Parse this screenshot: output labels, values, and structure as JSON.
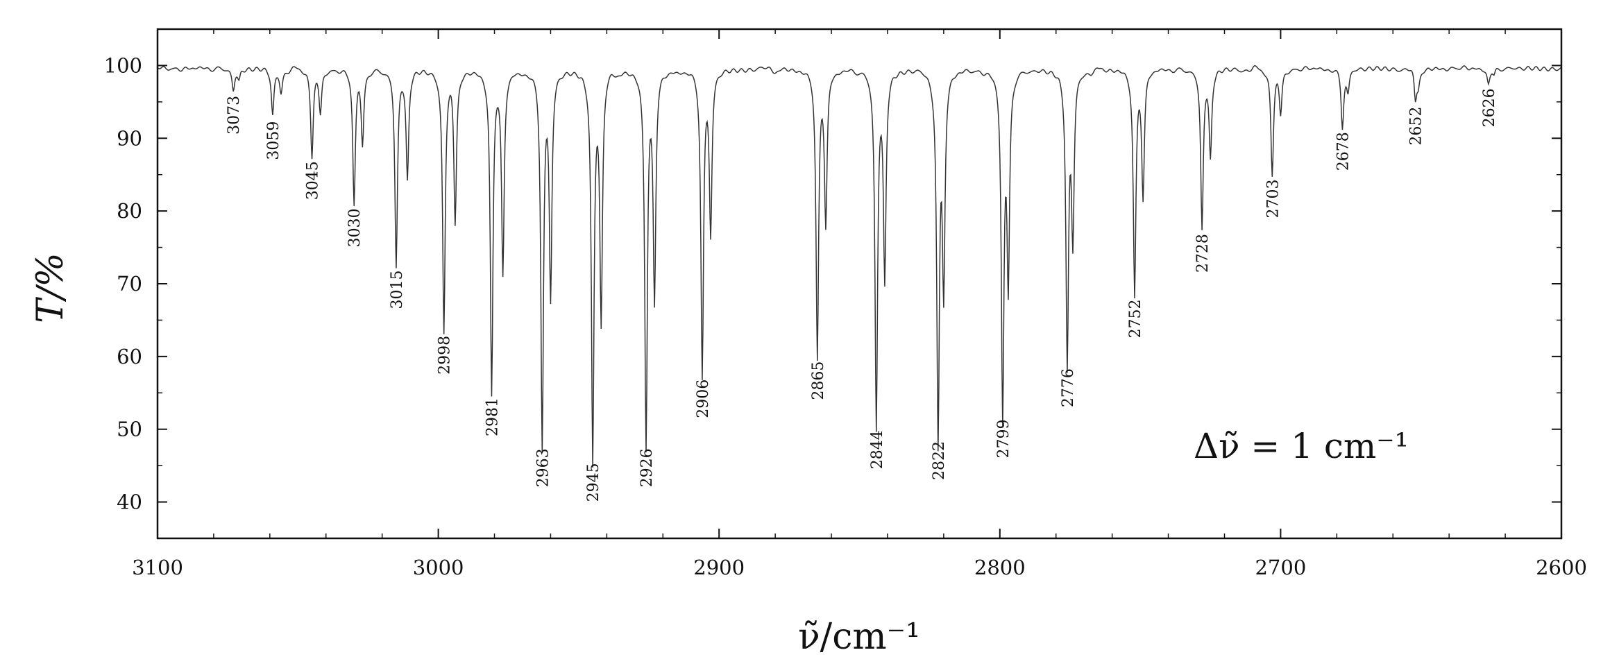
{
  "chart_data": {
    "type": "line",
    "xlabel": "ν̃/cm⁻¹",
    "ylabel": "T/%",
    "xlim": [
      3100,
      2600
    ],
    "ylim": [
      35,
      105
    ],
    "x_reversed": true,
    "grid": false,
    "x_ticks": [
      3100,
      3000,
      2900,
      2800,
      2700,
      2600
    ],
    "x_tick_labels": [
      "3100",
      "3000",
      "2900",
      "2800",
      "2700",
      "2600"
    ],
    "y_ticks": [
      40,
      50,
      60,
      70,
      80,
      90,
      100
    ],
    "y_tick_labels": [
      "40",
      "50",
      "60",
      "70",
      "80",
      "90",
      "100"
    ],
    "annotation": "Δν̃ = 1 cm⁻¹",
    "baseline": 100,
    "peaks": [
      {
        "x": 3073,
        "label": "3073",
        "main_min": 97.0,
        "sat_x": 3071,
        "sat_min": 98.5
      },
      {
        "x": 3059,
        "label": "3059",
        "main_min": 93.5,
        "sat_x": 3056,
        "sat_min": 97.0
      },
      {
        "x": 3045,
        "label": "3045",
        "main_min": 88.0,
        "sat_x": 3042,
        "sat_min": 94.0
      },
      {
        "x": 3030,
        "label": "3030",
        "main_min": 81.5,
        "sat_x": 3027,
        "sat_min": 90.0
      },
      {
        "x": 3015,
        "label": "3015",
        "main_min": 73.0,
        "sat_x": 3011,
        "sat_min": 85.0
      },
      {
        "x": 2998,
        "label": "2998",
        "main_min": 64.0,
        "sat_x": 2994,
        "sat_min": 79.0
      },
      {
        "x": 2981,
        "label": "2981",
        "main_min": 55.5,
        "sat_x": 2977,
        "sat_min": 72.0
      },
      {
        "x": 2963,
        "label": "2963",
        "main_min": 48.5,
        "sat_x": 2960,
        "sat_min": 69.5
      },
      {
        "x": 2945,
        "label": "2945",
        "main_min": 46.5,
        "sat_x": 2942,
        "sat_min": 66.0
      },
      {
        "x": 2926,
        "label": "2926",
        "main_min": 48.5,
        "sat_x": 2923,
        "sat_min": 69.0
      },
      {
        "x": 2906,
        "label": "2906",
        "main_min": 58.0,
        "sat_x": 2903,
        "sat_min": 78.0
      },
      {
        "x": 2865,
        "label": "2865",
        "main_min": 60.5,
        "sat_x": 2862,
        "sat_min": 79.5
      },
      {
        "x": 2844,
        "label": "2844",
        "main_min": 51.0,
        "sat_x": 2841,
        "sat_min": 71.5
      },
      {
        "x": 2822,
        "label": "2822",
        "main_min": 49.5,
        "sat_x": 2820,
        "sat_min": 70.5
      },
      {
        "x": 2799,
        "label": "2799",
        "main_min": 52.5,
        "sat_x": 2797,
        "sat_min": 71.5
      },
      {
        "x": 2776,
        "label": "2776",
        "main_min": 59.5,
        "sat_x": 2774,
        "sat_min": 77.5
      },
      {
        "x": 2752,
        "label": "2752",
        "main_min": 69.0,
        "sat_x": 2749,
        "sat_min": 83.0
      },
      {
        "x": 2728,
        "label": "2728",
        "main_min": 78.0,
        "sat_x": 2725,
        "sat_min": 88.0
      },
      {
        "x": 2703,
        "label": "2703",
        "main_min": 85.5,
        "sat_x": 2700,
        "sat_min": 94.0
      },
      {
        "x": 2678,
        "label": "2678",
        "main_min": 92.0,
        "sat_x": 2676,
        "sat_min": 97.0
      },
      {
        "x": 2652,
        "label": "2652",
        "main_min": 95.5,
        "sat_x": 2651,
        "sat_min": 98.0
      },
      {
        "x": 2626,
        "label": "2626",
        "main_min": 98.0,
        "sat_x": 2624,
        "sat_min": 99.0
      }
    ]
  }
}
